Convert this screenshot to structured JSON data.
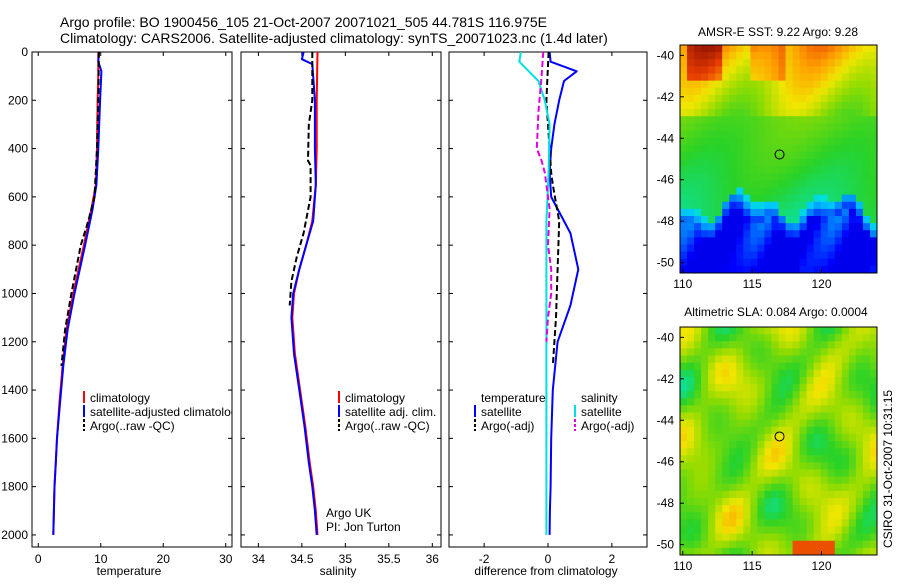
{
  "header": {
    "line1": "Argo profile: BO 1900456_105 21-Oct-2007 20071021_505 44.781S 116.975E",
    "line2": "Climatology: CARS2006. Satellite-adjusted climatology: synTS_20071023.nc (1.4d later)"
  },
  "credit": {
    "line1": "Argo UK",
    "line2": "PI: Jon Turton"
  },
  "side_stamp": "CSIRO 31-Oct-2007 10:31:15",
  "colors": {
    "climatology": "#ff0000",
    "satellite": "#0000ff",
    "argo": "#000000",
    "sal_sat": "#00e0e0",
    "sal_argo": "#e000e0"
  },
  "chart_data": [
    {
      "type": "line",
      "id": "temperature",
      "xlabel": "temperature",
      "ylabel": "",
      "xlim": [
        -1,
        31
      ],
      "ylim": [
        2050,
        0
      ],
      "xticks": [
        0,
        10,
        20,
        30
      ],
      "xtick_labels": [
        "0",
        "10",
        "20",
        "30"
      ],
      "yticks": [
        0,
        200,
        400,
        600,
        800,
        1000,
        1200,
        1400,
        1600,
        1800,
        2000
      ],
      "ytick_labels": [
        "0",
        "200",
        "400",
        "600",
        "800",
        "1000",
        "1200",
        "1400",
        "1600",
        "1800",
        "2000"
      ],
      "legend": [
        "climatology",
        "satellite-adjusted climatology",
        "Argo(..raw -QC)"
      ],
      "series": [
        {
          "name": "climatology",
          "color": "#ff0000",
          "dash": "",
          "x": [
            9.6,
            9.6,
            9.5,
            9.4,
            9.2,
            8.5,
            7.3,
            5.6,
            4.5,
            3.9,
            3.4,
            3.0,
            2.8,
            2.6,
            2.5,
            2.4
          ],
          "y": [
            0,
            100,
            200,
            400,
            550,
            650,
            800,
            1000,
            1150,
            1300,
            1450,
            1600,
            1700,
            1800,
            1900,
            2000
          ]
        },
        {
          "name": "satellite-adjusted climatology",
          "color": "#0000ff",
          "dash": "",
          "x": [
            9.7,
            9.6,
            10.1,
            9.9,
            9.6,
            9.3,
            8.7,
            7.5,
            5.8,
            4.7,
            4.0,
            3.5,
            3.0,
            2.8,
            2.6,
            2.5,
            2.4
          ],
          "y": [
            0,
            40,
            80,
            200,
            400,
            550,
            650,
            800,
            1000,
            1150,
            1300,
            1450,
            1600,
            1700,
            1800,
            1900,
            2000
          ]
        },
        {
          "name": "Argo(..raw -QC)",
          "color": "#000000",
          "dash": "6,3",
          "x": [
            9.7,
            9.6,
            9.4,
            9.0,
            8.0,
            6.8,
            5.3,
            4.3,
            3.7
          ],
          "y": [
            0,
            200,
            400,
            600,
            700,
            800,
            1000,
            1150,
            1300
          ]
        }
      ]
    },
    {
      "type": "line",
      "id": "salinity",
      "xlabel": "salinity",
      "ylabel": "",
      "xlim": [
        33.8,
        36.1
      ],
      "ylim": [
        2050,
        0
      ],
      "xticks": [
        34,
        34.5,
        35,
        35.5,
        36
      ],
      "xtick_labels": [
        "34",
        "34.5",
        "35",
        "35.5",
        "36"
      ],
      "legend": [
        "climatology",
        "satellite adj. clim.",
        "Argo(..raw -QC)"
      ],
      "series": [
        {
          "name": "climatology",
          "color": "#ff0000",
          "dash": "",
          "x": [
            34.68,
            34.67,
            34.67,
            34.66,
            34.62,
            34.55,
            34.47,
            34.41,
            34.39,
            34.42,
            34.48,
            34.54,
            34.59,
            34.63,
            34.66,
            34.68
          ],
          "y": [
            0,
            200,
            400,
            550,
            700,
            800,
            900,
            1000,
            1100,
            1250,
            1400,
            1550,
            1700,
            1800,
            1900,
            2000
          ]
        },
        {
          "name": "satellite adj. clim.",
          "color": "#0000ff",
          "dash": "",
          "x": [
            34.52,
            34.5,
            34.62,
            34.65,
            34.65,
            34.66,
            34.63,
            34.55,
            34.47,
            34.4,
            34.38,
            34.41,
            34.47,
            34.53,
            34.58,
            34.62,
            34.65,
            34.67
          ],
          "y": [
            0,
            30,
            50,
            200,
            400,
            550,
            700,
            800,
            900,
            1000,
            1100,
            1250,
            1400,
            1550,
            1700,
            1800,
            1900,
            2000
          ]
        },
        {
          "name": "Argo(..raw -QC)",
          "color": "#000000",
          "dash": "6,3",
          "x": [
            34.62,
            34.62,
            34.58,
            34.57,
            34.6,
            34.6,
            34.52,
            34.44,
            34.38,
            34.36
          ],
          "y": [
            0,
            200,
            300,
            450,
            470,
            600,
            750,
            850,
            950,
            1050
          ]
        }
      ]
    },
    {
      "type": "line",
      "id": "difference",
      "xlabel": "difference from climatology",
      "ylabel": "",
      "xlim": [
        -3.1,
        3.1
      ],
      "ylim": [
        2050,
        0
      ],
      "xticks": [
        -2,
        0,
        2
      ],
      "xtick_labels": [
        "-2",
        "0",
        "2"
      ],
      "legend_left_title": "temperature",
      "legend_right_title": "salinity",
      "legend": [
        "satellite",
        "Argo(-adj)",
        "satellite",
        "Argo(-adj)"
      ],
      "series": [
        {
          "name": "temperature satellite",
          "color": "#0000ff",
          "dash": "",
          "x": [
            0.05,
            0.08,
            0.9,
            0.5,
            0.35,
            0.2,
            0.1,
            0.05,
            0.1,
            0.3,
            0.7,
            0.95,
            0.7,
            0.3,
            0.15,
            0.1,
            0.08,
            0.06,
            0.05
          ],
          "y": [
            0,
            40,
            80,
            120,
            200,
            300,
            400,
            500,
            600,
            650,
            750,
            900,
            1050,
            1200,
            1400,
            1600,
            1800,
            1900,
            2000
          ]
        },
        {
          "name": "temperature Argo(-adj)",
          "color": "#000000",
          "dash": "6,3",
          "x": [
            0.02,
            -0.05,
            0.05,
            0.1,
            0.15,
            0.35,
            0.3,
            0.25,
            0.2,
            0.15
          ],
          "y": [
            0,
            200,
            400,
            500,
            550,
            700,
            900,
            1100,
            1200,
            1300
          ]
        },
        {
          "name": "salinity satellite",
          "color": "#00e0e0",
          "dash": "",
          "x": [
            -0.85,
            -0.9,
            -0.6,
            -0.3,
            -0.1,
            0.05,
            0.02,
            -0.05,
            -0.05,
            -0.05,
            -0.05,
            -0.05,
            -0.05,
            -0.05
          ],
          "y": [
            0,
            40,
            80,
            120,
            200,
            300,
            500,
            700,
            1000,
            1300,
            1500,
            1700,
            1900,
            2000
          ]
        },
        {
          "name": "salinity Argo(-adj)",
          "color": "#e000e0",
          "dash": "6,3",
          "x": [
            -0.15,
            -0.2,
            -0.3,
            -0.35,
            -0.2,
            -0.1,
            0.05,
            0.0,
            0.1,
            0.1,
            0.0,
            -0.05
          ],
          "y": [
            0,
            100,
            250,
            400,
            450,
            500,
            650,
            800,
            900,
            1000,
            1100,
            1200
          ]
        }
      ]
    },
    {
      "type": "heatmap",
      "id": "sst-map",
      "title": "AMSR-E SST: 9.22 Argo: 9.28",
      "xlim": [
        109.8,
        124
      ],
      "ylim": [
        -50.5,
        -39.5
      ],
      "xticks": [
        110,
        115,
        120
      ],
      "xtick_labels": [
        "110",
        "115",
        "120"
      ],
      "yticks": [
        -40,
        -42,
        -44,
        -46,
        -48,
        -50
      ],
      "ytick_labels": [
        "-40",
        "-42",
        "-44",
        "-46",
        "-48",
        "-50"
      ],
      "marker": {
        "lon": 116.975,
        "lat": -44.781
      }
    },
    {
      "type": "heatmap",
      "id": "sla-map",
      "title": "Altimetric SLA: 0.084 Argo: 0.0004",
      "xlim": [
        109.8,
        124
      ],
      "ylim": [
        -50.5,
        -39.5
      ],
      "xticks": [
        110,
        115,
        120
      ],
      "xtick_labels": [
        "110",
        "115",
        "120"
      ],
      "yticks": [
        -40,
        -42,
        -44,
        -46,
        -48,
        -50
      ],
      "ytick_labels": [
        "-40",
        "-42",
        "-44",
        "-46",
        "-48",
        "-50"
      ],
      "marker": {
        "lon": 116.975,
        "lat": -44.781
      }
    }
  ]
}
